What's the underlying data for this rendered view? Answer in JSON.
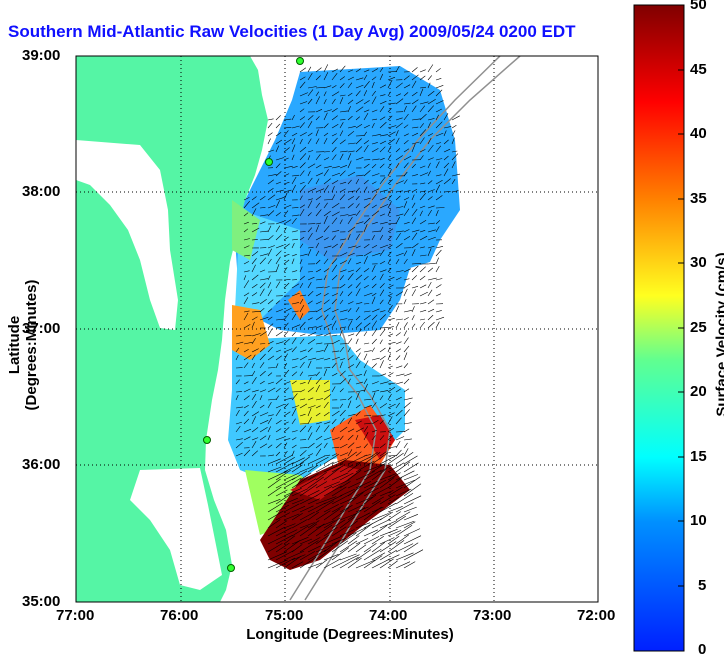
{
  "title": "Southern Mid-Atlantic Raw Velocities (1 Day Avg) 2009/05/24 0200 EDT",
  "axes": {
    "xlabel": "Longitude (Degrees:Minutes)",
    "ylabel": "Latitude (Degrees:Minutes)",
    "x_ticks": [
      "77:00",
      "76:00",
      "75:00",
      "74:00",
      "73:00",
      "72:00"
    ],
    "y_ticks": [
      "39:00",
      "38:00",
      "37:00",
      "36:00",
      "35:00"
    ],
    "x_range": [
      -77,
      -72
    ],
    "y_range": [
      35,
      39
    ],
    "grid": true
  },
  "colorbar": {
    "label": "Surface Velocity (cm/s)",
    "ticks": [
      "50",
      "45",
      "40",
      "35",
      "30",
      "25",
      "20",
      "15",
      "10",
      "5",
      "0"
    ],
    "range": [
      0,
      50
    ]
  },
  "colors": {
    "land": "#55f5a5",
    "title": "#1010ff"
  }
}
